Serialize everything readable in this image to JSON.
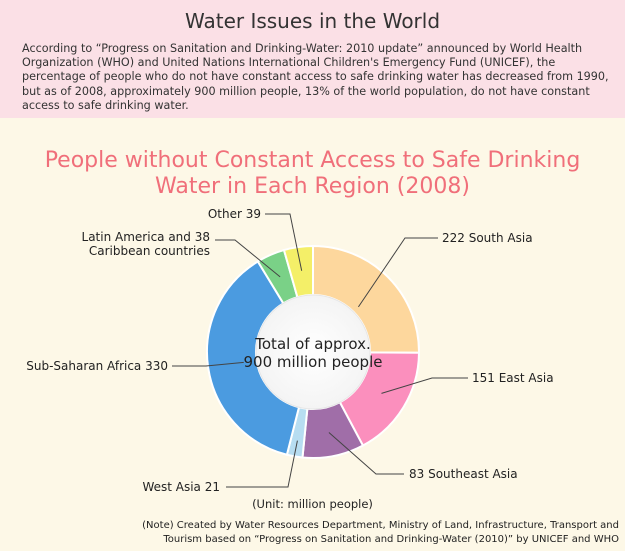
{
  "header": {
    "title": "Water Issues in the World",
    "intro": "According to “Progress on Sanitation and Drinking-Water: 2010 update” announced by World Health Organization (WHO) and United Nations International Children's Emergency Fund (UNICEF), the percentage of people who do not have constant access to safe drinking water has decreased from 1990, but as of 2008, approximately 900 million people, 13% of the world population, do not have constant access to safe drinking water."
  },
  "chart_data": {
    "type": "pie",
    "variant": "donut",
    "title_line1": "People without Constant Access to Safe Drinking",
    "title_line2": "Water in Each Region (2008)",
    "center_label_line1": "Total of approx.",
    "center_label_line2": "900 million people",
    "unit": "(Unit: million people)",
    "slices": [
      {
        "name": "South Asia",
        "value": 222,
        "color": "#fdd79d",
        "label": "222 South Asia"
      },
      {
        "name": "East Asia",
        "value": 151,
        "color": "#fb8fbd",
        "label": "151 East Asia"
      },
      {
        "name": "Southeast Asia",
        "value": 83,
        "color": "#a06ea8",
        "label": "83 Southeast Asia"
      },
      {
        "name": "West Asia",
        "value": 21,
        "color": "#b7ddf1",
        "label": "West Asia  21"
      },
      {
        "name": "Sub-Saharan Africa",
        "value": 330,
        "color": "#4b9be0",
        "label": "Sub-Saharan Africa 330"
      },
      {
        "name": "Latin America and Caribbean countries",
        "value": 38,
        "color": "#7ad187",
        "label": "Latin America and 38",
        "label2": "Caribbean countries"
      },
      {
        "name": "Other",
        "value": 39,
        "color": "#f4ef68",
        "label": "Other 39"
      }
    ]
  },
  "footer": {
    "note_line1": "(Note) Created by Water Resources Department, Ministry of Land, Infrastructure, Transport and",
    "note_line2": "Tourism based on “Progress on Sanitation and Drinking-Water (2010)” by UNICEF and WHO"
  }
}
